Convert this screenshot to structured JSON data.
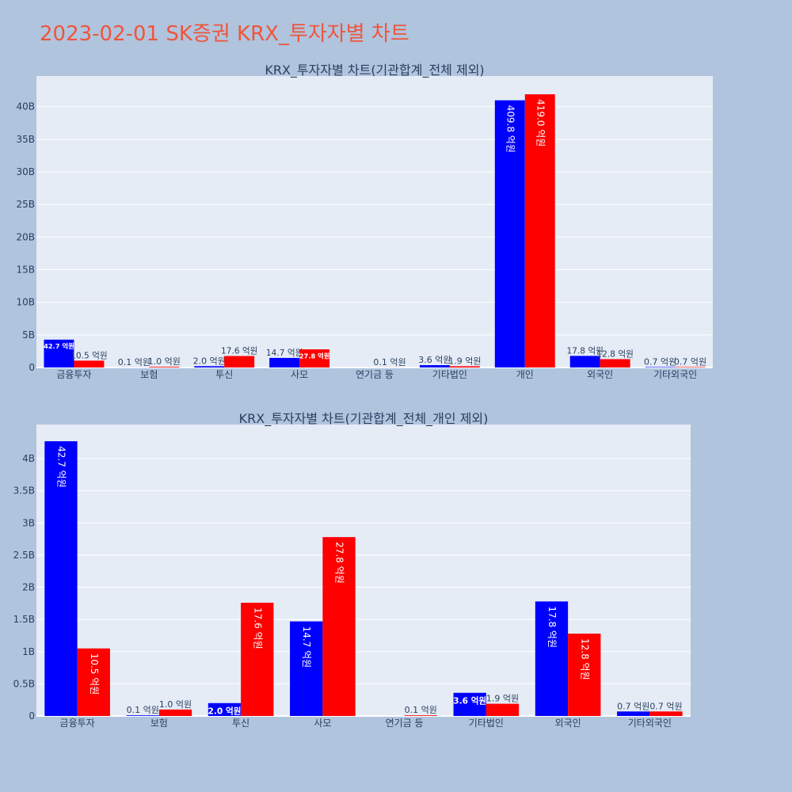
{
  "title": "2023-02-01 SK증권 KRX_투자자별 차트",
  "colors": {
    "title": "#ef553b",
    "buy": "#0000ff",
    "sell": "#ff0000",
    "plot_bg": "#e5ecf6",
    "page_bg": "#b0c4de"
  },
  "chart_data": [
    {
      "type": "bar",
      "title": "KRX_투자자별 차트(기관합계_전체 제외)",
      "categories": [
        "금융투자",
        "보험",
        "투신",
        "사모",
        "연기금 등",
        "기타법인",
        "개인",
        "외국인",
        "기타외국인"
      ],
      "ylim": [
        0,
        44700000000
      ],
      "yticks": [
        0,
        5000000000,
        10000000000,
        15000000000,
        20000000000,
        25000000000,
        30000000000,
        35000000000,
        40000000000
      ],
      "ytick_labels": [
        "0",
        "5B",
        "10B",
        "15B",
        "20B",
        "25B",
        "30B",
        "35B",
        "40B"
      ],
      "grid": true,
      "series": [
        {
          "values": [
            4270000000,
            10000000,
            200000000,
            1470000000,
            0,
            360000000,
            40980000000,
            1780000000,
            70000000
          ],
          "labels": [
            "42.7 억원",
            "0.1 억원",
            "2.0 억원",
            "14.7 억원",
            "",
            "3.6 억원",
            "409.8 억원",
            "17.8 억원",
            "0.7 억원"
          ]
        },
        {
          "values": [
            1050000000,
            100000000,
            1760000000,
            2780000000,
            10000000,
            190000000,
            41900000000,
            1280000000,
            70000000
          ],
          "labels": [
            "10.5 억원",
            "1.0 억원",
            "17.6 억원",
            "27.8 억원",
            "0.1 억원",
            "1.9 억원",
            "419.0 억원",
            "12.8 억원",
            "0.7 억원"
          ]
        }
      ]
    },
    {
      "type": "bar",
      "title": "KRX_투자자별 차트(기관합계_전체_개인 제외)",
      "categories": [
        "금융투자",
        "보험",
        "투신",
        "사모",
        "연기금 등",
        "기타법인",
        "외국인",
        "기타외국인"
      ],
      "ylim": [
        0,
        4530000000
      ],
      "yticks": [
        0,
        500000000,
        1000000000,
        1500000000,
        2000000000,
        2500000000,
        3000000000,
        3500000000,
        4000000000
      ],
      "ytick_labels": [
        "0",
        "0.5B",
        "1B",
        "1.5B",
        "2B",
        "2.5B",
        "3B",
        "3.5B",
        "4B"
      ],
      "grid": true,
      "series": [
        {
          "values": [
            4270000000,
            10000000,
            200000000,
            1470000000,
            0,
            360000000,
            1780000000,
            70000000
          ],
          "labels": [
            "42.7 억원",
            "0.1 억원",
            "2.0 억원",
            "14.7 억원",
            "",
            "3.6 억원",
            "17.8 억원",
            "0.7 억원"
          ]
        },
        {
          "values": [
            1050000000,
            100000000,
            1760000000,
            2780000000,
            10000000,
            190000000,
            1280000000,
            70000000
          ],
          "labels": [
            "10.5 억원",
            "1.0 억원",
            "17.6 억원",
            "27.8 억원",
            "0.1 억원",
            "1.9 억원",
            "12.8 억원",
            "0.7 억원"
          ]
        }
      ]
    }
  ]
}
